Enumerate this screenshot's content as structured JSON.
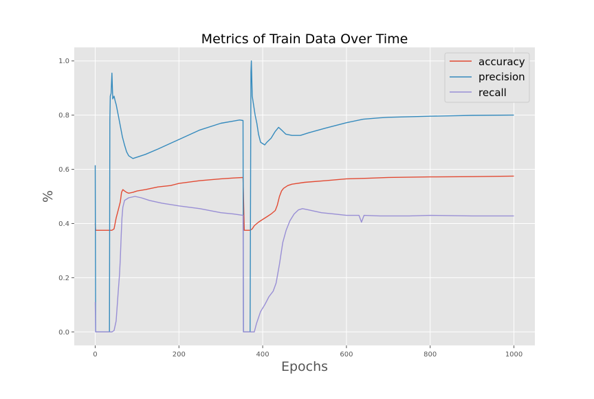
{
  "chart_data": {
    "type": "line",
    "title": "Metrics of Train Data Over Time",
    "xlabel": "Epochs",
    "ylabel": "%",
    "xlim": [
      -50,
      1050
    ],
    "ylim": [
      -0.05,
      1.05
    ],
    "x_ticks": [
      0,
      200,
      400,
      600,
      800,
      1000
    ],
    "y_ticks": [
      0.0,
      0.2,
      0.4,
      0.6,
      0.8,
      1.0
    ],
    "x_tick_labels": [
      "0",
      "200",
      "400",
      "600",
      "800",
      "1000"
    ],
    "y_tick_labels": [
      "0.0",
      "0.2",
      "0.4",
      "0.6",
      "0.8",
      "1.0"
    ],
    "grid": true,
    "legend_position": "top-right",
    "background": "#e5e5e5",
    "series": [
      {
        "name": "accuracy",
        "color": "#e24a33",
        "points": [
          [
            0,
            0.4
          ],
          [
            1,
            0.375
          ],
          [
            20,
            0.375
          ],
          [
            35,
            0.375
          ],
          [
            40,
            0.375
          ],
          [
            45,
            0.38
          ],
          [
            50,
            0.42
          ],
          [
            55,
            0.45
          ],
          [
            60,
            0.48
          ],
          [
            63,
            0.515
          ],
          [
            66,
            0.525
          ],
          [
            70,
            0.52
          ],
          [
            75,
            0.515
          ],
          [
            80,
            0.512
          ],
          [
            90,
            0.515
          ],
          [
            100,
            0.52
          ],
          [
            120,
            0.525
          ],
          [
            150,
            0.535
          ],
          [
            180,
            0.54
          ],
          [
            200,
            0.548
          ],
          [
            250,
            0.558
          ],
          [
            300,
            0.565
          ],
          [
            330,
            0.568
          ],
          [
            353,
            0.57
          ],
          [
            356,
            0.375
          ],
          [
            360,
            0.375
          ],
          [
            370,
            0.375
          ],
          [
            375,
            0.38
          ],
          [
            380,
            0.392
          ],
          [
            390,
            0.405
          ],
          [
            400,
            0.415
          ],
          [
            410,
            0.425
          ],
          [
            420,
            0.435
          ],
          [
            430,
            0.448
          ],
          [
            435,
            0.468
          ],
          [
            440,
            0.5
          ],
          [
            445,
            0.52
          ],
          [
            450,
            0.53
          ],
          [
            460,
            0.54
          ],
          [
            470,
            0.545
          ],
          [
            500,
            0.552
          ],
          [
            550,
            0.558
          ],
          [
            600,
            0.565
          ],
          [
            650,
            0.567
          ],
          [
            700,
            0.57
          ],
          [
            800,
            0.572
          ],
          [
            900,
            0.573
          ],
          [
            1000,
            0.575
          ]
        ]
      },
      {
        "name": "precision",
        "color": "#348abd",
        "points": [
          [
            0,
            0.615
          ],
          [
            1,
            0.0
          ],
          [
            30,
            0.0
          ],
          [
            34,
            0.0
          ],
          [
            35,
            0.78
          ],
          [
            36,
            0.87
          ],
          [
            38,
            0.88
          ],
          [
            40,
            0.955
          ],
          [
            42,
            0.86
          ],
          [
            45,
            0.87
          ],
          [
            48,
            0.85
          ],
          [
            50,
            0.84
          ],
          [
            55,
            0.8
          ],
          [
            60,
            0.76
          ],
          [
            65,
            0.72
          ],
          [
            70,
            0.69
          ],
          [
            75,
            0.665
          ],
          [
            80,
            0.65
          ],
          [
            90,
            0.64
          ],
          [
            100,
            0.645
          ],
          [
            120,
            0.655
          ],
          [
            150,
            0.675
          ],
          [
            200,
            0.71
          ],
          [
            250,
            0.745
          ],
          [
            300,
            0.77
          ],
          [
            330,
            0.778
          ],
          [
            345,
            0.782
          ],
          [
            353,
            0.78
          ],
          [
            354,
            0.0
          ],
          [
            370,
            0.0
          ],
          [
            372,
            0.96
          ],
          [
            373,
            1.0
          ],
          [
            375,
            0.87
          ],
          [
            378,
            0.84
          ],
          [
            382,
            0.8
          ],
          [
            386,
            0.77
          ],
          [
            390,
            0.73
          ],
          [
            395,
            0.7
          ],
          [
            400,
            0.695
          ],
          [
            405,
            0.69
          ],
          [
            410,
            0.7
          ],
          [
            420,
            0.715
          ],
          [
            430,
            0.74
          ],
          [
            438,
            0.755
          ],
          [
            445,
            0.745
          ],
          [
            455,
            0.73
          ],
          [
            470,
            0.725
          ],
          [
            490,
            0.725
          ],
          [
            510,
            0.735
          ],
          [
            550,
            0.752
          ],
          [
            600,
            0.772
          ],
          [
            640,
            0.785
          ],
          [
            680,
            0.79
          ],
          [
            700,
            0.792
          ],
          [
            800,
            0.796
          ],
          [
            900,
            0.799
          ],
          [
            1000,
            0.8
          ]
        ]
      },
      {
        "name": "recall",
        "color": "#988ed5",
        "points": [
          [
            0,
            0.11
          ],
          [
            1,
            0.0
          ],
          [
            40,
            0.0
          ],
          [
            45,
            0.005
          ],
          [
            50,
            0.04
          ],
          [
            55,
            0.15
          ],
          [
            58,
            0.21
          ],
          [
            60,
            0.27
          ],
          [
            62,
            0.35
          ],
          [
            64,
            0.42
          ],
          [
            66,
            0.46
          ],
          [
            70,
            0.485
          ],
          [
            80,
            0.495
          ],
          [
            95,
            0.5
          ],
          [
            110,
            0.495
          ],
          [
            130,
            0.485
          ],
          [
            160,
            0.475
          ],
          [
            200,
            0.465
          ],
          [
            250,
            0.455
          ],
          [
            300,
            0.44
          ],
          [
            330,
            0.435
          ],
          [
            353,
            0.43
          ],
          [
            354,
            0.0
          ],
          [
            380,
            0.0
          ],
          [
            385,
            0.03
          ],
          [
            395,
            0.075
          ],
          [
            405,
            0.1
          ],
          [
            415,
            0.13
          ],
          [
            425,
            0.15
          ],
          [
            432,
            0.18
          ],
          [
            440,
            0.25
          ],
          [
            448,
            0.33
          ],
          [
            456,
            0.375
          ],
          [
            465,
            0.41
          ],
          [
            475,
            0.435
          ],
          [
            485,
            0.45
          ],
          [
            495,
            0.455
          ],
          [
            510,
            0.45
          ],
          [
            540,
            0.44
          ],
          [
            570,
            0.435
          ],
          [
            600,
            0.43
          ],
          [
            630,
            0.43
          ],
          [
            636,
            0.405
          ],
          [
            642,
            0.43
          ],
          [
            680,
            0.428
          ],
          [
            750,
            0.428
          ],
          [
            800,
            0.43
          ],
          [
            900,
            0.428
          ],
          [
            1000,
            0.428
          ]
        ]
      }
    ]
  }
}
